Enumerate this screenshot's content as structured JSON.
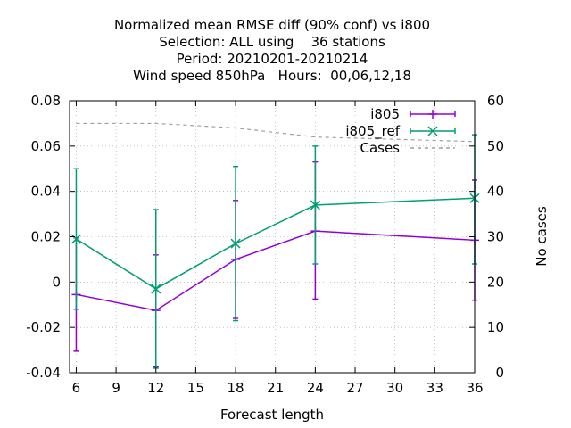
{
  "chart_data": {
    "type": "line",
    "title_lines": [
      "Normalized mean RMSE diff (90% conf) vs i800",
      "Selection: ALL using    36 stations",
      "Period: 20210201-20210214",
      "Wind speed 850hPa   Hours:  00,06,12,18"
    ],
    "xlabel": "Forecast length",
    "y2label": "No cases",
    "xlim": [
      5.5,
      36
    ],
    "ylim": [
      -0.04,
      0.08
    ],
    "y2lim": [
      0,
      60
    ],
    "xticks": [
      "6",
      "9",
      "12",
      "15",
      "18",
      "21",
      "24",
      "27",
      "30",
      "33",
      "36"
    ],
    "yticks": [
      "-0.04",
      "-0.02",
      "0",
      "0.02",
      "0.04",
      "0.06",
      "0.08"
    ],
    "y2ticks": [
      "0",
      "10",
      "20",
      "30",
      "40",
      "50",
      "60"
    ],
    "grid": true,
    "legend_position": "top-right",
    "series": [
      {
        "name": "i805",
        "color": "#9400d3",
        "marker": "plus",
        "axis": "y1",
        "x": [
          6,
          12,
          18,
          24,
          36
        ],
        "y": [
          -0.0055,
          -0.0125,
          0.01,
          0.0225,
          0.0185
        ],
        "err_low": [
          -0.0305,
          -0.0375,
          -0.016,
          -0.0075,
          -0.008
        ],
        "err_high": [
          0.0195,
          0.012,
          0.036,
          0.053,
          0.045
        ]
      },
      {
        "name": "i805_ref",
        "color": "#009e73",
        "marker": "cross",
        "axis": "y1",
        "x": [
          6,
          12,
          18,
          24,
          36
        ],
        "y": [
          0.019,
          -0.003,
          0.017,
          0.034,
          0.037
        ],
        "err_low": [
          -0.012,
          -0.038,
          -0.017,
          0.008,
          0.008
        ],
        "err_high": [
          0.05,
          0.032,
          0.051,
          0.06,
          0.065
        ]
      },
      {
        "name": "Cases",
        "color": "#a0a0a0",
        "dashed": true,
        "axis": "y2",
        "x": [
          6,
          12,
          18,
          24,
          36
        ],
        "y": [
          55,
          55,
          54,
          52,
          51
        ]
      }
    ]
  }
}
